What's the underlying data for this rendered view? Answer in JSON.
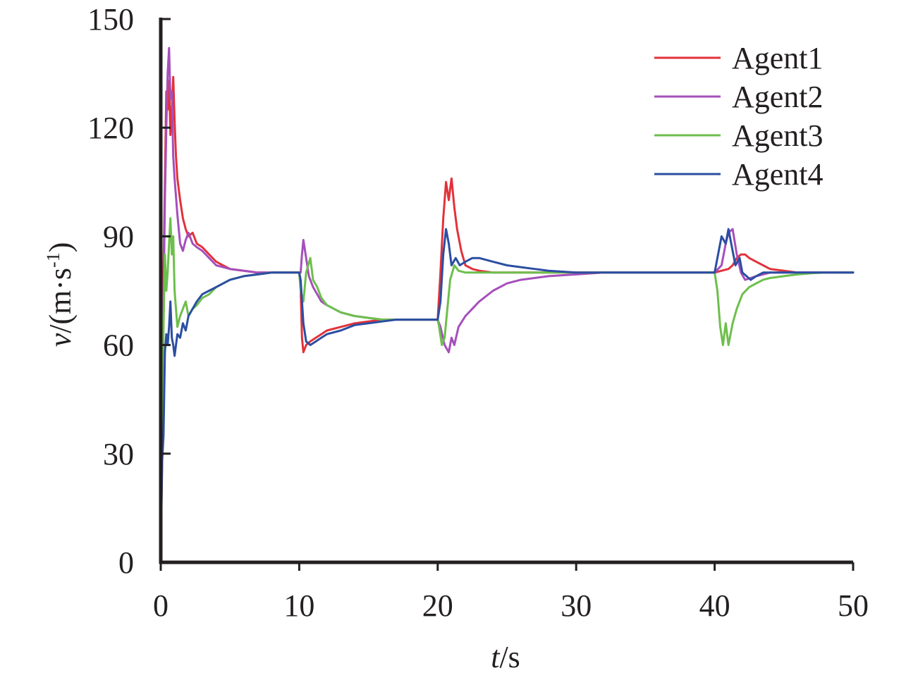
{
  "chart_data": {
    "type": "line",
    "xlabel_var": "t",
    "xlabel_unit": "/s",
    "ylabel_var": "v",
    "ylabel_unit_pre": "/(m·s",
    "ylabel_unit_sup": "-1",
    "ylabel_unit_post": ")",
    "xlim": [
      0,
      50
    ],
    "ylim": [
      0,
      150
    ],
    "xticks": [
      "0",
      "10",
      "20",
      "30",
      "40",
      "50"
    ],
    "yticks": [
      "0",
      "30",
      "60",
      "90",
      "120",
      "150"
    ],
    "grid": false,
    "legend_position": "top-right",
    "series": [
      {
        "name": "Agent1",
        "color": "#e2323a",
        "x": [
          0,
          0.1,
          0.2,
          0.3,
          0.4,
          0.5,
          0.6,
          0.7,
          0.8,
          0.9,
          1.0,
          1.1,
          1.2,
          1.4,
          1.6,
          1.8,
          2.0,
          2.3,
          2.6,
          3.0,
          3.5,
          4.0,
          5.0,
          6.0,
          7.0,
          8.0,
          9.0,
          10.0,
          10.1,
          10.2,
          10.3,
          10.5,
          10.8,
          11.2,
          11.6,
          12.0,
          13.0,
          14.0,
          15.0,
          16.0,
          17.0,
          18.0,
          19.0,
          19.8,
          20.0,
          20.2,
          20.4,
          20.6,
          20.8,
          21.0,
          21.2,
          21.4,
          21.7,
          22.0,
          22.5,
          23.0,
          24.0,
          26.0,
          30.0,
          35.0,
          40.0,
          40.5,
          41.0,
          41.3,
          41.6,
          41.9,
          42.2,
          42.5,
          43.0,
          43.5,
          44.0,
          45.0,
          46.0,
          47.0,
          48.0,
          49.0,
          50.0
        ],
        "y": [
          2,
          45,
          80,
          105,
          130,
          125,
          133,
          118,
          125,
          134,
          122,
          112,
          106,
          100,
          95,
          92,
          90,
          91,
          88,
          87,
          85,
          83,
          81,
          80.5,
          80,
          80,
          80,
          80,
          76,
          62,
          58,
          60,
          61,
          62,
          63,
          64,
          65,
          66,
          66.5,
          67,
          67,
          67,
          67,
          67,
          67,
          80,
          95,
          105,
          100,
          106,
          98,
          92,
          86,
          82,
          81,
          80.5,
          80,
          80,
          80,
          80,
          80,
          80.5,
          81,
          82,
          84,
          85,
          85,
          84,
          83,
          82,
          81,
          80.5,
          80,
          80,
          80,
          80,
          80
        ]
      },
      {
        "name": "Agent2",
        "color": "#a54fbb",
        "x": [
          0,
          0.1,
          0.2,
          0.3,
          0.4,
          0.5,
          0.6,
          0.7,
          0.8,
          0.9,
          1.0,
          1.2,
          1.4,
          1.6,
          1.8,
          2.0,
          2.3,
          2.6,
          3.0,
          3.5,
          4.0,
          5.0,
          6.0,
          7.0,
          8.0,
          9.0,
          10.0,
          10.1,
          10.2,
          10.3,
          10.5,
          10.7,
          11.0,
          11.3,
          11.6,
          12.0,
          12.5,
          13.0,
          14.0,
          15.0,
          16.0,
          17.0,
          18.0,
          19.0,
          20.0,
          20.2,
          20.5,
          20.8,
          21.0,
          21.2,
          21.5,
          22.0,
          22.5,
          23.0,
          24.0,
          25.0,
          26.0,
          27.0,
          28.0,
          30.0,
          32.0,
          35.0,
          40.0,
          40.5,
          40.8,
          41.0,
          41.3,
          41.6,
          41.9,
          42.2,
          42.6,
          43.0,
          43.5,
          44.0,
          45.0,
          46.0,
          47.0,
          48.0,
          49.0,
          50.0
        ],
        "y": [
          3,
          30,
          70,
          100,
          120,
          135,
          142,
          128,
          130,
          112,
          106,
          96,
          88,
          86,
          89,
          91,
          88,
          87,
          86,
          84,
          82,
          81,
          80.5,
          80,
          80,
          80,
          80,
          80,
          85,
          89,
          84,
          79,
          76,
          74,
          72,
          71,
          70,
          69,
          68,
          67.5,
          67,
          67,
          67,
          67,
          67,
          65,
          60,
          58,
          62,
          60,
          65,
          68,
          70,
          72,
          75,
          77,
          78,
          78.5,
          79,
          79.5,
          80,
          80,
          80,
          82,
          88,
          91,
          92,
          85,
          80,
          78,
          78.5,
          79,
          79.5,
          80,
          80,
          80,
          80,
          80,
          80,
          80
        ]
      },
      {
        "name": "Agent3",
        "color": "#6dbf4c",
        "x": [
          0,
          0.1,
          0.2,
          0.3,
          0.4,
          0.5,
          0.6,
          0.7,
          0.8,
          0.9,
          1.0,
          1.1,
          1.2,
          1.4,
          1.6,
          1.8,
          2.0,
          2.3,
          2.6,
          3.0,
          3.5,
          4.0,
          5.0,
          6.0,
          7.0,
          8.0,
          9.0,
          10.0,
          10.1,
          10.3,
          10.5,
          10.8,
          11.0,
          11.3,
          11.6,
          12.0,
          12.5,
          13.0,
          14.0,
          15.0,
          16.0,
          17.0,
          18.0,
          19.0,
          20.0,
          20.1,
          20.3,
          20.5,
          20.7,
          20.9,
          21.2,
          21.5,
          22.0,
          23.0,
          25.0,
          30.0,
          35.0,
          40.0,
          40.2,
          40.4,
          40.6,
          40.8,
          41.0,
          41.3,
          41.6,
          42.0,
          42.5,
          43.0,
          43.5,
          44.0,
          45.0,
          46.0,
          47.0,
          48.0,
          49.0,
          50.0
        ],
        "y": [
          5,
          40,
          65,
          85,
          75,
          80,
          88,
          95,
          85,
          90,
          75,
          70,
          65,
          68,
          70,
          72,
          68,
          70,
          71,
          73,
          74,
          76,
          78,
          79,
          79.5,
          80,
          80,
          80,
          75,
          72,
          80,
          84,
          78,
          76,
          73,
          71,
          70,
          69,
          68,
          67.5,
          67,
          67,
          67,
          67,
          67,
          65,
          60,
          62,
          70,
          78,
          82,
          80.5,
          80,
          80,
          80,
          80,
          80,
          80,
          75,
          65,
          60,
          66,
          60,
          66,
          70,
          74,
          76,
          77,
          78,
          78.5,
          79,
          79.5,
          79.8,
          80,
          80,
          80
        ]
      },
      {
        "name": "Agent4",
        "color": "#2b4ea2",
        "x": [
          0,
          0.1,
          0.2,
          0.3,
          0.4,
          0.5,
          0.6,
          0.7,
          0.8,
          0.9,
          1.0,
          1.2,
          1.4,
          1.6,
          1.8,
          2.0,
          2.3,
          2.6,
          3.0,
          3.5,
          4.0,
          5.0,
          6.0,
          7.0,
          8.0,
          9.0,
          10.0,
          10.1,
          10.3,
          10.5,
          10.8,
          11.2,
          11.6,
          12.0,
          13.0,
          14.0,
          15.0,
          16.0,
          17.0,
          18.0,
          19.0,
          20.0,
          20.2,
          20.4,
          20.6,
          20.8,
          21.0,
          21.3,
          21.6,
          22.0,
          22.5,
          23.0,
          24.0,
          25.0,
          26.0,
          27.0,
          28.0,
          30.0,
          32.0,
          35.0,
          40.0,
          40.2,
          40.5,
          40.8,
          41.0,
          41.3,
          41.5,
          41.8,
          42.0,
          42.3,
          42.6,
          43.0,
          43.5,
          44.0,
          45.0,
          46.0,
          47.0,
          48.0,
          49.0,
          50.0
        ],
        "y": [
          2,
          28,
          35,
          58,
          63,
          60,
          65,
          72,
          62,
          60,
          57,
          63,
          62,
          66,
          64,
          68,
          70,
          72,
          74,
          75,
          76,
          78,
          79,
          79.5,
          80,
          80,
          80,
          78,
          66,
          61,
          60,
          61,
          62,
          63,
          64,
          65.5,
          66,
          66.5,
          67,
          67,
          67,
          67,
          72,
          85,
          92,
          88,
          82,
          84,
          82,
          83,
          84,
          84,
          83,
          82,
          81.5,
          81,
          80.5,
          80,
          80,
          80,
          80,
          84,
          90,
          88,
          92,
          86,
          82,
          84,
          80,
          79,
          78,
          79,
          80,
          80,
          80,
          80,
          80,
          80,
          80,
          80
        ]
      }
    ]
  }
}
